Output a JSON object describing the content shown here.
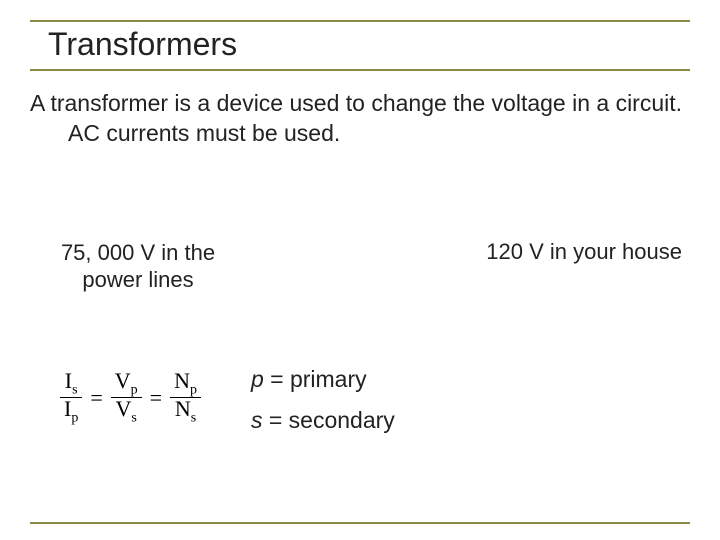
{
  "colors": {
    "rule": "#8a8a45",
    "text": "#222222",
    "bg": "#ffffff"
  },
  "title": "Transformers",
  "description": "A transformer is a device used to change the voltage in a circuit.  AC currents must be used.",
  "voltage": {
    "left_line1": "75, 000 V in the",
    "left_line2": "power lines",
    "right": "120 V in your house"
  },
  "formula": {
    "frac1_top": "I",
    "frac1_top_sub": "s",
    "frac1_bot": "I",
    "frac1_bot_sub": "p",
    "frac2_top": "V",
    "frac2_top_sub": "p",
    "frac2_bot": "V",
    "frac2_bot_sub": "s",
    "frac3_top": "N",
    "frac3_top_sub": "p",
    "frac3_bot": "N",
    "frac3_bot_sub": "s",
    "equals": "="
  },
  "legend": {
    "primary_var": "p",
    "primary_text": " = primary",
    "secondary_var": "s",
    "secondary_text": " = secondary"
  }
}
